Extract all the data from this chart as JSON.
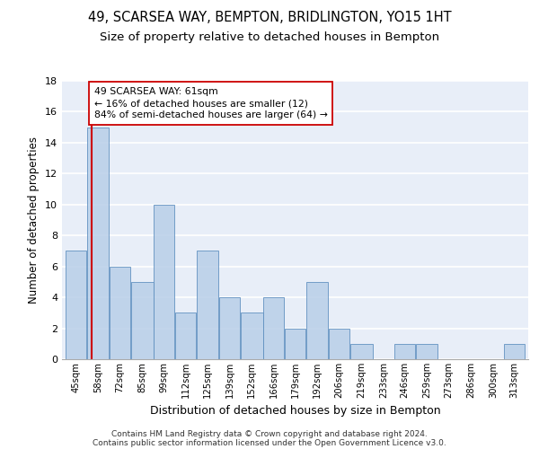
{
  "title1": "49, SCARSEA WAY, BEMPTON, BRIDLINGTON, YO15 1HT",
  "title2": "Size of property relative to detached houses in Bempton",
  "xlabel": "Distribution of detached houses by size in Bempton",
  "ylabel": "Number of detached properties",
  "categories": [
    "45sqm",
    "58sqm",
    "72sqm",
    "85sqm",
    "99sqm",
    "112sqm",
    "125sqm",
    "139sqm",
    "152sqm",
    "166sqm",
    "179sqm",
    "192sqm",
    "206sqm",
    "219sqm",
    "233sqm",
    "246sqm",
    "259sqm",
    "273sqm",
    "286sqm",
    "300sqm",
    "313sqm"
  ],
  "values": [
    7,
    15,
    6,
    5,
    10,
    3,
    7,
    4,
    3,
    4,
    2,
    5,
    2,
    1,
    0,
    1,
    1,
    0,
    0,
    0,
    1
  ],
  "bar_color": "#b8cfe8",
  "bar_edge_color": "#6090c0",
  "subject_value": 61,
  "bin_edges": [
    45,
    58,
    72,
    85,
    99,
    112,
    125,
    139,
    152,
    166,
    179,
    192,
    206,
    219,
    233,
    246,
    259,
    273,
    286,
    300,
    313,
    326
  ],
  "vline_color": "#cc0000",
  "annotation_line1": "49 SCARSEA WAY: 61sqm",
  "annotation_line2": "← 16% of detached houses are smaller (12)",
  "annotation_line3": "84% of semi-detached houses are larger (64) →",
  "annotation_box_color": "#ffffff",
  "annotation_box_edge": "#cc0000",
  "ylim": [
    0,
    18
  ],
  "yticks": [
    0,
    2,
    4,
    6,
    8,
    10,
    12,
    14,
    16,
    18
  ],
  "footer1": "Contains HM Land Registry data © Crown copyright and database right 2024.",
  "footer2": "Contains public sector information licensed under the Open Government Licence v3.0.",
  "bg_color": "#e8eef8",
  "grid_color": "#ffffff",
  "title1_fontsize": 10.5,
  "title2_fontsize": 9.5,
  "bar_alpha": 0.85
}
